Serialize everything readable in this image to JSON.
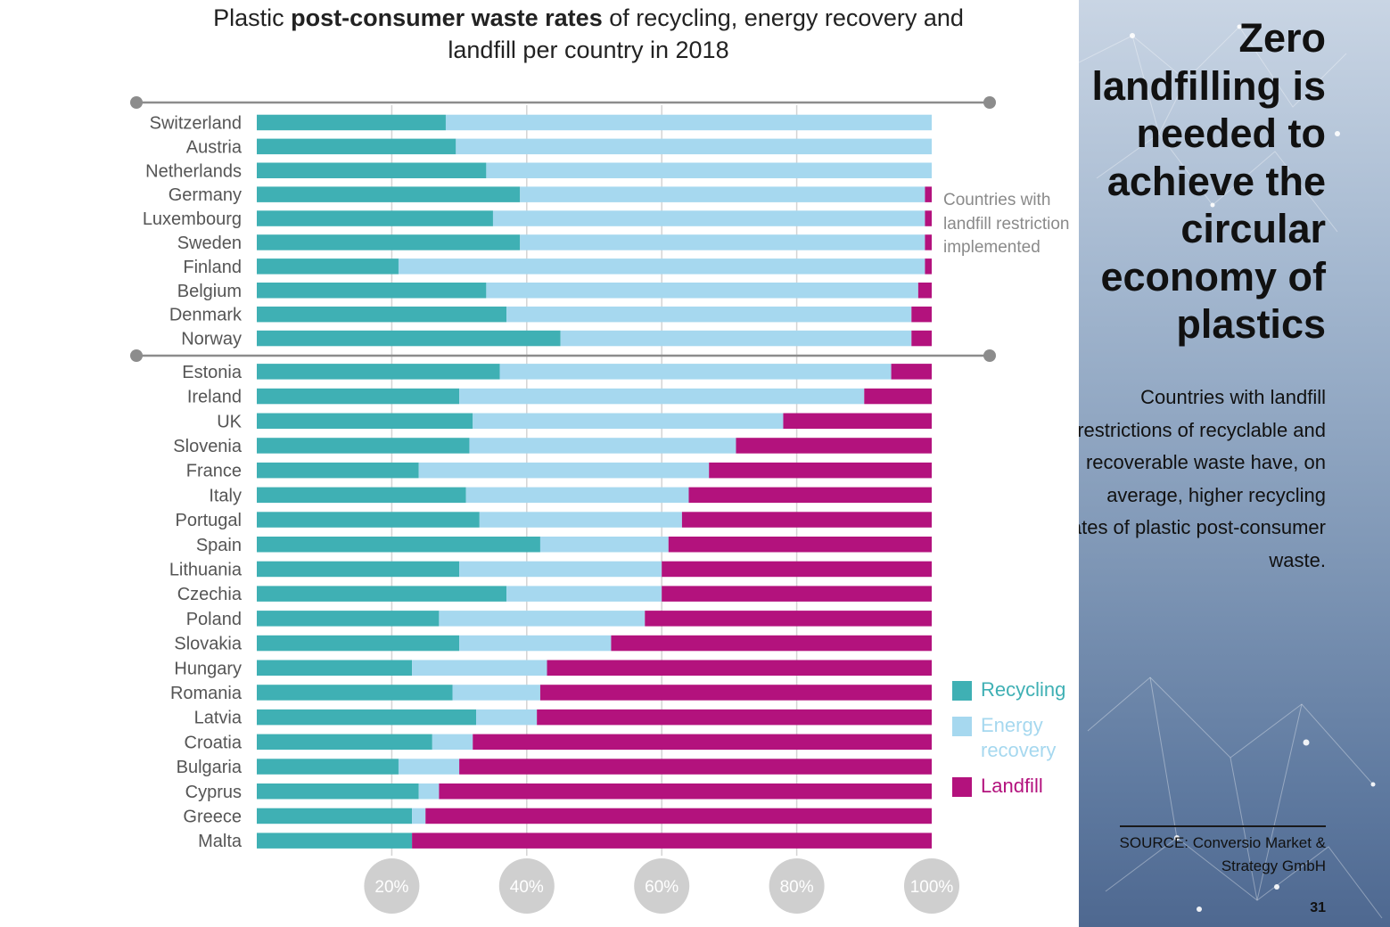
{
  "title": {
    "part1": "Plastic ",
    "bold": "post-consumer waste rates",
    "part2": " of recycling, energy recovery and landfill per country in 2018"
  },
  "restriction_note": "Countries with landfill restriction implemented",
  "legend": [
    {
      "label": "Recycling",
      "color": "#3fb0b4"
    },
    {
      "label": "Energy recovery",
      "color": "#a6d8ef"
    },
    {
      "label": "Landfill",
      "color": "#b3127d"
    }
  ],
  "sidebar": {
    "headline": "Zero landfilling is needed to achieve the circular economy of plastics",
    "body": "Countries with landfill restrictions of recyclable and recoverable waste have, on average, higher recycling rates of plastic post-consumer waste.",
    "source": "SOURCE: Conversio Market & Strategy GmbH",
    "page_number": "31"
  },
  "chart_data": {
    "type": "bar",
    "orientation": "horizontal",
    "stacked": true,
    "categories": [
      "Switzerland",
      "Austria",
      "Netherlands",
      "Germany",
      "Luxembourg",
      "Sweden",
      "Finland",
      "Belgium",
      "Denmark",
      "Norway",
      "Estonia",
      "Ireland",
      "UK",
      "Slovenia",
      "France",
      "Italy",
      "Portugal",
      "Spain",
      "Lithuania",
      "Czechia",
      "Poland",
      "Slovakia",
      "Hungary",
      "Romania",
      "Latvia",
      "Croatia",
      "Bulgaria",
      "Cyprus",
      "Greece",
      "Malta"
    ],
    "group_split_after": "Norway",
    "series": [
      {
        "name": "Recycling",
        "color": "#3fb0b4",
        "values": [
          28,
          29.5,
          34,
          39,
          35,
          39,
          21,
          34,
          37,
          45,
          36,
          30,
          32,
          31.5,
          24,
          31,
          33,
          42,
          30,
          37,
          27,
          30,
          23,
          29,
          32.5,
          26,
          21,
          24,
          23,
          23
        ]
      },
      {
        "name": "Energy recovery",
        "color": "#a6d8ef",
        "values": [
          72,
          70.5,
          66,
          60,
          64,
          60,
          78,
          64,
          60,
          52,
          58,
          60,
          46,
          39.5,
          43,
          33,
          30,
          19,
          30,
          23,
          30.5,
          22.5,
          20,
          13,
          9,
          6,
          9,
          3,
          2,
          0
        ]
      },
      {
        "name": "Landfill",
        "color": "#b3127d",
        "values": [
          0,
          0,
          0,
          1,
          1,
          1,
          1,
          2,
          3,
          3,
          6,
          10,
          22,
          29,
          33,
          36,
          37,
          39,
          40,
          40,
          42.5,
          47.5,
          57,
          58,
          58.5,
          68,
          70,
          73,
          75,
          77
        ]
      }
    ],
    "x_ticks": [
      "20%",
      "40%",
      "60%",
      "80%",
      "100%"
    ],
    "xlim": [
      0,
      100
    ],
    "grid": true,
    "legend_position": "right"
  }
}
